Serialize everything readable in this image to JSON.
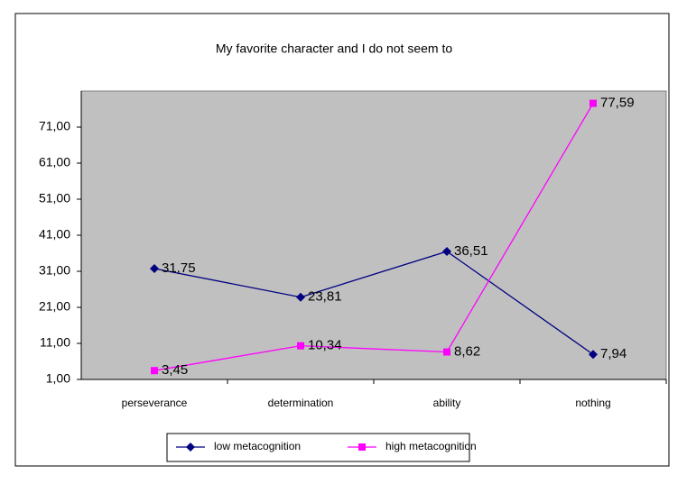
{
  "chart_data": {
    "type": "line",
    "title": "My favorite character and I do not seem to",
    "categories": [
      "perseverance",
      "determination",
      "ability",
      "nothing"
    ],
    "series": [
      {
        "name": "low metacognition",
        "color": "#000080",
        "marker": "diamond",
        "values": [
          31.75,
          23.81,
          36.51,
          7.94
        ],
        "value_labels": [
          "31,75",
          "23,81",
          "36,51",
          "7,94"
        ]
      },
      {
        "name": "high metacognition",
        "color": "#ff00ff",
        "marker": "square",
        "values": [
          3.45,
          10.34,
          8.62,
          77.59
        ],
        "value_labels": [
          "3,45",
          "10,34",
          "8,62",
          "77,59"
        ]
      }
    ],
    "ylim": [
      1,
      81
    ],
    "yticks": [
      {
        "value": 1,
        "label": "1,00"
      },
      {
        "value": 11,
        "label": "11,00"
      },
      {
        "value": 21,
        "label": "21,00"
      },
      {
        "value": 31,
        "label": "31,00"
      },
      {
        "value": 41,
        "label": "41,00"
      },
      {
        "value": 51,
        "label": "51,00"
      },
      {
        "value": 61,
        "label": "61,00"
      },
      {
        "value": 71,
        "label": "71,00"
      }
    ],
    "legend": "bottom"
  }
}
